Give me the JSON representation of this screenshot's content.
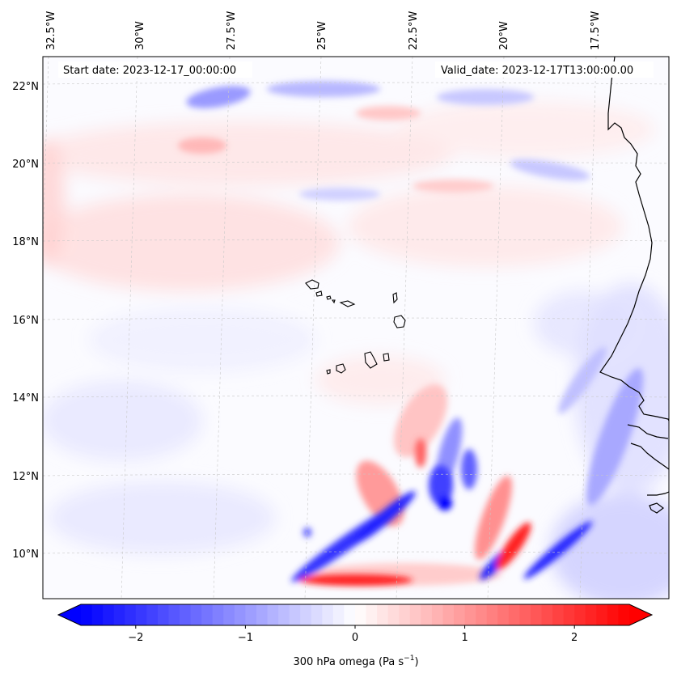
{
  "map": {
    "start_date_label": "Start date: 2023-12-17_00:00:00",
    "valid_date_label": "Valid_date: 2023-12-17T13:00:00.00",
    "lon_ticks": [
      "32.5°W",
      "30°W",
      "27.5°W",
      "25°W",
      "22.5°W",
      "20°W",
      "17.5°W"
    ],
    "lat_ticks": [
      "22°N",
      "20°N",
      "18°N",
      "16°N",
      "14°N",
      "12°N",
      "10°N"
    ],
    "field": "300 hPa omega",
    "units": "Pa s⁻¹"
  },
  "colorbar": {
    "label_prefix": "300 hPa omega (Pa s",
    "label_exp": "−1",
    "label_suffix": ")",
    "tick_labels": [
      "−2",
      "−1",
      "0",
      "1",
      "2"
    ],
    "tick_values": [
      -2,
      -1,
      0,
      1,
      2
    ],
    "range": [
      -2.5,
      2.5
    ],
    "colors": {
      "min": "#0000ff",
      "mid": "#ffffff",
      "max": "#ff0000"
    }
  }
}
